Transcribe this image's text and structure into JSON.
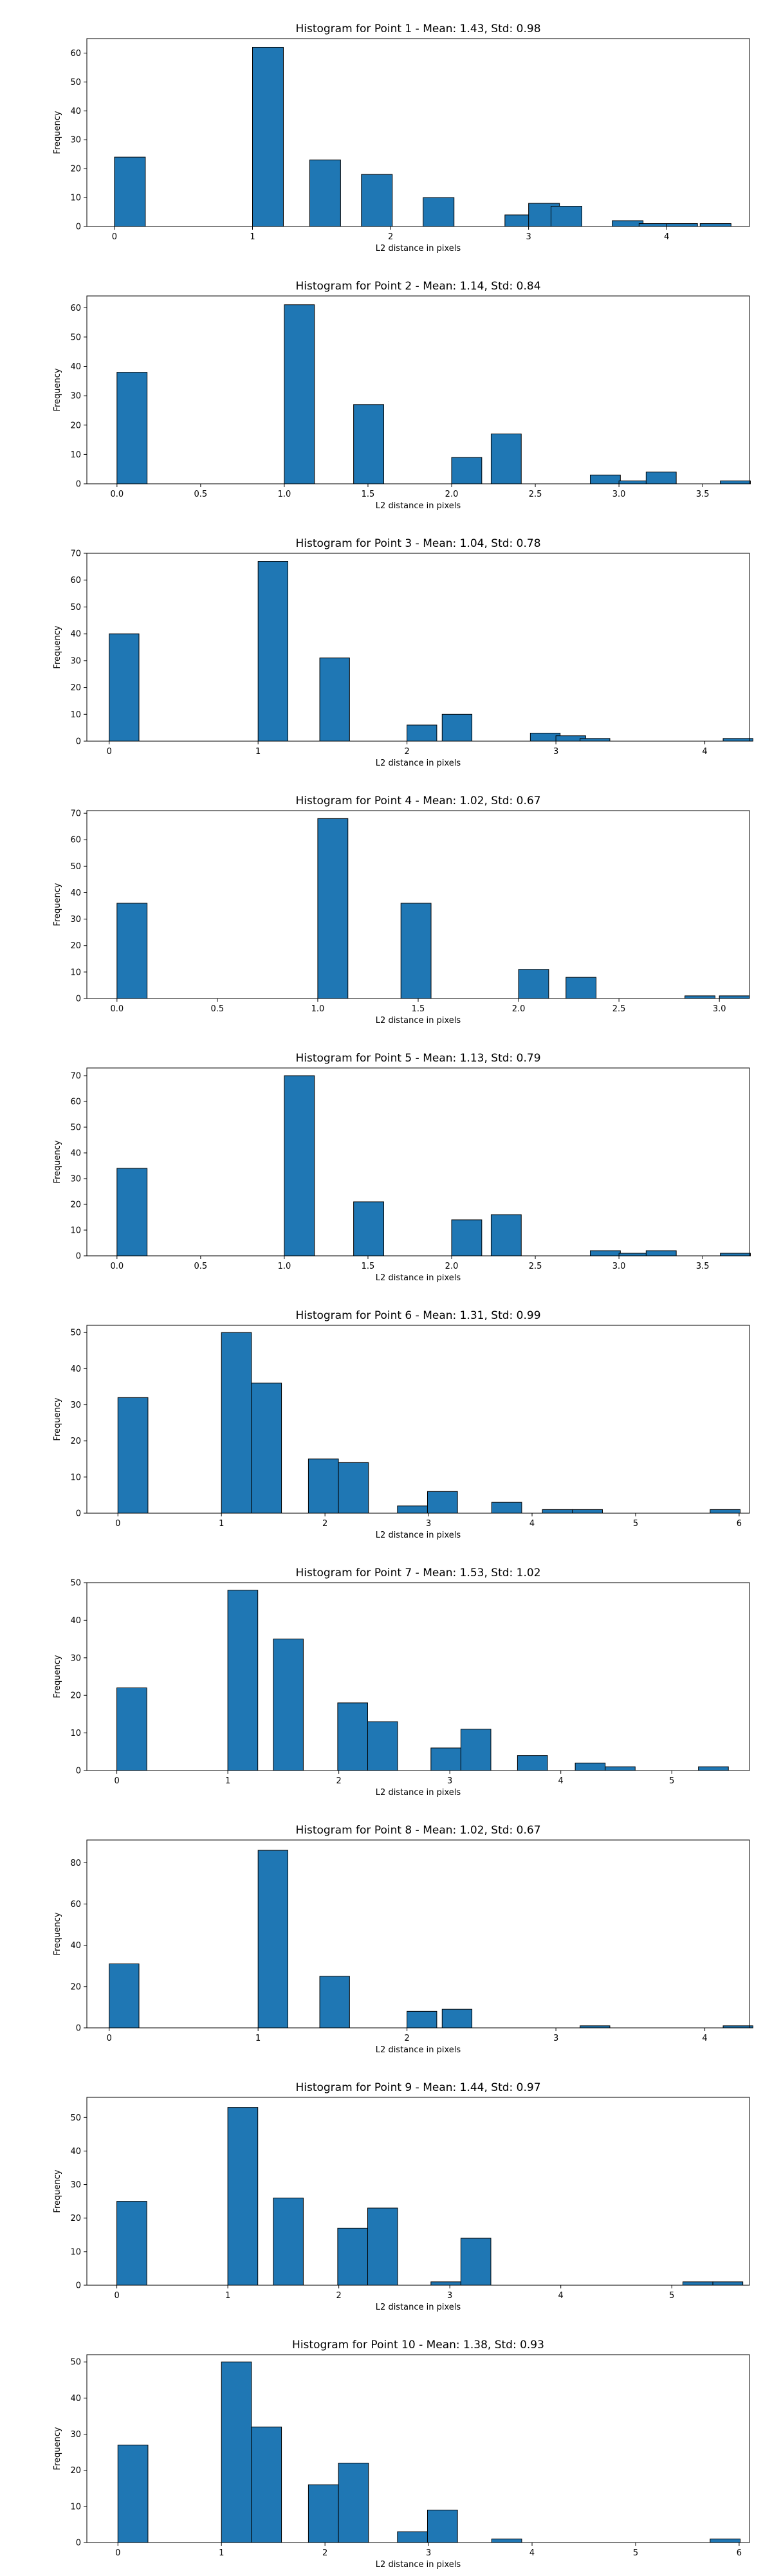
{
  "figure": {
    "bar_color": "#1f77b4",
    "edge_color": "#000000",
    "background": "#ffffff"
  },
  "chart_data": [
    {
      "type": "bar",
      "title": "Histogram for Point 1 - Mean: 1.43, Std: 0.98",
      "xlabel": "L2 distance in pixels",
      "ylabel": "Frequency",
      "xlim": [
        -0.2,
        4.6
      ],
      "ylim": [
        0,
        65
      ],
      "xticks": [
        0,
        1,
        2,
        3,
        4
      ],
      "xtick_labels": [
        "0",
        "1",
        "2",
        "3",
        "4"
      ],
      "yticks": [
        0,
        10,
        20,
        30,
        40,
        50,
        60
      ],
      "bin_width": 0.2236,
      "bins": [
        [
          0.0,
          24
        ],
        [
          1.0,
          62
        ],
        [
          1.4142,
          23
        ],
        [
          1.7889,
          18
        ],
        [
          2.2361,
          10
        ],
        [
          2.8284,
          4
        ],
        [
          3.0,
          8
        ],
        [
          3.1623,
          7
        ],
        [
          3.6056,
          2
        ],
        [
          3.8,
          1
        ],
        [
          4.0,
          1
        ],
        [
          4.2426,
          1
        ]
      ]
    },
    {
      "type": "bar",
      "title": "Histogram for Point 2 - Mean: 1.14, Std: 0.84",
      "xlabel": "L2 distance in pixels",
      "ylabel": "Frequency",
      "xlim": [
        -0.18,
        3.78
      ],
      "ylim": [
        0,
        64
      ],
      "xticks": [
        0.0,
        0.5,
        1.0,
        1.5,
        2.0,
        2.5,
        3.0,
        3.5
      ],
      "xtick_labels": [
        "0.0",
        "0.5",
        "1.0",
        "1.5",
        "2.0",
        "2.5",
        "3.0",
        "3.5"
      ],
      "yticks": [
        0,
        10,
        20,
        30,
        40,
        50,
        60
      ],
      "bin_width": 0.18,
      "bins": [
        [
          0.0,
          38
        ],
        [
          1.0,
          61
        ],
        [
          1.4142,
          27
        ],
        [
          2.0,
          9
        ],
        [
          2.2361,
          17
        ],
        [
          2.8284,
          3
        ],
        [
          3.0,
          1
        ],
        [
          3.1623,
          4
        ],
        [
          3.6056,
          1
        ]
      ]
    },
    {
      "type": "bar",
      "title": "Histogram for Point 3 - Mean: 1.04, Std: 0.78",
      "xlabel": "L2 distance in pixels",
      "ylabel": "Frequency",
      "xlim": [
        -0.15,
        4.3
      ],
      "ylim": [
        0,
        70
      ],
      "xticks": [
        0,
        1,
        2,
        3,
        4
      ],
      "xtick_labels": [
        "0",
        "1",
        "2",
        "3",
        "4"
      ],
      "yticks": [
        0,
        10,
        20,
        30,
        40,
        50,
        60,
        70
      ],
      "bin_width": 0.2,
      "bins": [
        [
          0.0,
          40
        ],
        [
          1.0,
          67
        ],
        [
          1.4142,
          31
        ],
        [
          2.0,
          6
        ],
        [
          2.2361,
          10
        ],
        [
          2.8284,
          3
        ],
        [
          3.0,
          2
        ],
        [
          3.1623,
          1
        ],
        [
          4.1231,
          1
        ]
      ]
    },
    {
      "type": "bar",
      "title": "Histogram for Point 4 - Mean: 1.02, Std: 0.67",
      "xlabel": "L2 distance in pixels",
      "ylabel": "Frequency",
      "xlim": [
        -0.15,
        3.15
      ],
      "ylim": [
        0,
        71
      ],
      "xticks": [
        0.0,
        0.5,
        1.0,
        1.5,
        2.0,
        2.5,
        3.0
      ],
      "xtick_labels": [
        "0.0",
        "0.5",
        "1.0",
        "1.5",
        "2.0",
        "2.5",
        "3.0"
      ],
      "yticks": [
        0,
        10,
        20,
        30,
        40,
        50,
        60,
        70
      ],
      "bin_width": 0.15,
      "bins": [
        [
          0.0,
          36
        ],
        [
          1.0,
          68
        ],
        [
          1.4142,
          36
        ],
        [
          2.0,
          11
        ],
        [
          2.2361,
          8
        ],
        [
          2.8284,
          1
        ],
        [
          3.0,
          1
        ]
      ]
    },
    {
      "type": "bar",
      "title": "Histogram for Point 5 - Mean: 1.13, Std: 0.79",
      "xlabel": "L2 distance in pixels",
      "ylabel": "Frequency",
      "xlim": [
        -0.18,
        3.78
      ],
      "ylim": [
        0,
        73
      ],
      "xticks": [
        0.0,
        0.5,
        1.0,
        1.5,
        2.0,
        2.5,
        3.0,
        3.5
      ],
      "xtick_labels": [
        "0.0",
        "0.5",
        "1.0",
        "1.5",
        "2.0",
        "2.5",
        "3.0",
        "3.5"
      ],
      "yticks": [
        0,
        10,
        20,
        30,
        40,
        50,
        60,
        70
      ],
      "bin_width": 0.18,
      "bins": [
        [
          0.0,
          34
        ],
        [
          1.0,
          70
        ],
        [
          1.4142,
          21
        ],
        [
          2.0,
          14
        ],
        [
          2.2361,
          16
        ],
        [
          2.8284,
          2
        ],
        [
          3.0,
          1
        ],
        [
          3.1623,
          2
        ],
        [
          3.6056,
          1
        ]
      ]
    },
    {
      "type": "bar",
      "title": "Histogram for Point 6 - Mean: 1.31, Std: 0.99",
      "xlabel": "L2 distance in pixels",
      "ylabel": "Frequency",
      "xlim": [
        -0.3,
        6.1
      ],
      "ylim": [
        0,
        52
      ],
      "xticks": [
        0,
        1,
        2,
        3,
        4,
        5,
        6
      ],
      "xtick_labels": [
        "0",
        "1",
        "2",
        "3",
        "4",
        "5",
        "6"
      ],
      "yticks": [
        0,
        10,
        20,
        30,
        40,
        50
      ],
      "bin_width": 0.29,
      "bins": [
        [
          0.0,
          32
        ],
        [
          1.0,
          50
        ],
        [
          1.29,
          36
        ],
        [
          1.84,
          15
        ],
        [
          2.13,
          14
        ],
        [
          2.7,
          2
        ],
        [
          2.99,
          6
        ],
        [
          3.61,
          3
        ],
        [
          4.1,
          1
        ],
        [
          4.39,
          1
        ],
        [
          5.72,
          1
        ]
      ]
    },
    {
      "type": "bar",
      "title": "Histogram for Point 7 - Mean: 1.53, Std: 1.02",
      "xlabel": "L2 distance in pixels",
      "ylabel": "Frequency",
      "xlim": [
        -0.27,
        5.7
      ],
      "ylim": [
        0,
        50
      ],
      "xticks": [
        0,
        1,
        2,
        3,
        4,
        5
      ],
      "xtick_labels": [
        "0",
        "1",
        "2",
        "3",
        "4",
        "5"
      ],
      "yticks": [
        0,
        10,
        20,
        30,
        40,
        50
      ],
      "bin_width": 0.27,
      "bins": [
        [
          0.0,
          22
        ],
        [
          1.0,
          48
        ],
        [
          1.41,
          35
        ],
        [
          1.99,
          18
        ],
        [
          2.26,
          13
        ],
        [
          2.83,
          6
        ],
        [
          3.1,
          11
        ],
        [
          3.61,
          4
        ],
        [
          4.13,
          2
        ],
        [
          4.4,
          1
        ],
        [
          5.24,
          1
        ]
      ]
    },
    {
      "type": "bar",
      "title": "Histogram for Point 8 - Mean: 1.02, Std: 0.67",
      "xlabel": "L2 distance in pixels",
      "ylabel": "Frequency",
      "xlim": [
        -0.15,
        4.3
      ],
      "ylim": [
        0,
        91
      ],
      "xticks": [
        0,
        1,
        2,
        3,
        4
      ],
      "xtick_labels": [
        "0",
        "1",
        "2",
        "3",
        "4"
      ],
      "yticks": [
        0,
        20,
        40,
        60,
        80
      ],
      "bin_width": 0.2,
      "bins": [
        [
          0.0,
          31
        ],
        [
          1.0,
          86
        ],
        [
          1.4142,
          25
        ],
        [
          2.0,
          8
        ],
        [
          2.2361,
          9
        ],
        [
          3.1623,
          1
        ],
        [
          4.1231,
          1
        ]
      ]
    },
    {
      "type": "bar",
      "title": "Histogram for Point 9 - Mean: 1.44, Std: 0.97",
      "xlabel": "L2 distance in pixels",
      "ylabel": "Frequency",
      "xlim": [
        -0.27,
        5.7
      ],
      "ylim": [
        0,
        56
      ],
      "xticks": [
        0,
        1,
        2,
        3,
        4,
        5
      ],
      "xtick_labels": [
        "0",
        "1",
        "2",
        "3",
        "4",
        "5"
      ],
      "yticks": [
        0,
        10,
        20,
        30,
        40,
        50
      ],
      "bin_width": 0.27,
      "bins": [
        [
          0.0,
          25
        ],
        [
          1.0,
          53
        ],
        [
          1.41,
          26
        ],
        [
          1.99,
          17
        ],
        [
          2.26,
          23
        ],
        [
          2.83,
          1
        ],
        [
          3.1,
          14
        ],
        [
          5.1,
          1
        ],
        [
          5.37,
          1
        ]
      ]
    },
    {
      "type": "bar",
      "title": "Histogram for Point 10 - Mean: 1.38, Std: 0.93",
      "xlabel": "L2 distance in pixels",
      "ylabel": "Frequency",
      "xlim": [
        -0.3,
        6.1
      ],
      "ylim": [
        0,
        52
      ],
      "xticks": [
        0,
        1,
        2,
        3,
        4,
        5,
        6
      ],
      "xtick_labels": [
        "0",
        "1",
        "2",
        "3",
        "4",
        "5",
        "6"
      ],
      "yticks": [
        0,
        10,
        20,
        30,
        40,
        50
      ],
      "bin_width": 0.29,
      "bins": [
        [
          0.0,
          27
        ],
        [
          1.0,
          50
        ],
        [
          1.29,
          32
        ],
        [
          1.84,
          16
        ],
        [
          2.13,
          22
        ],
        [
          2.7,
          3
        ],
        [
          2.99,
          9
        ],
        [
          3.61,
          1
        ],
        [
          5.72,
          1
        ]
      ]
    }
  ]
}
